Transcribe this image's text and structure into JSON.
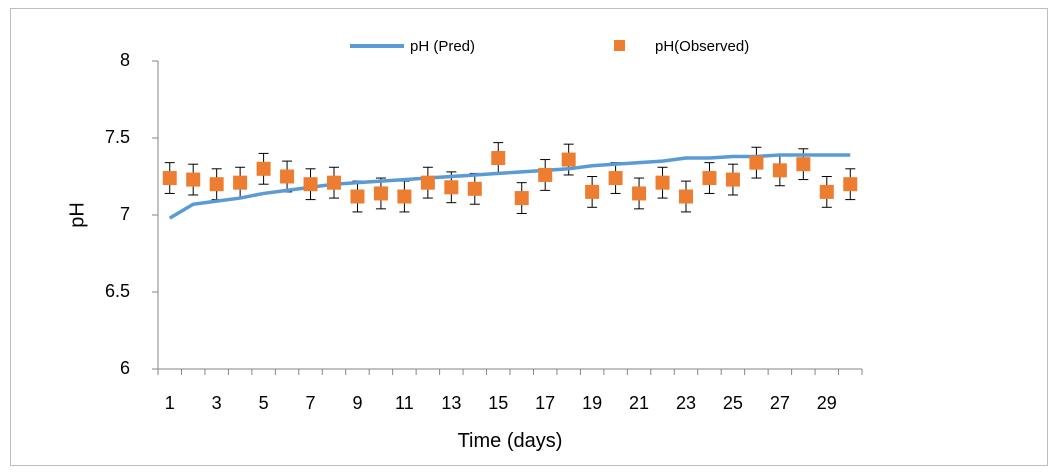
{
  "chart_data": {
    "type": "line",
    "xlabel": "Time (days)",
    "ylabel": "pH",
    "ylim": [
      6,
      8
    ],
    "xlim": [
      0.5,
      30.5
    ],
    "yticks": [
      6,
      6.5,
      7,
      7.5,
      8
    ],
    "xticks": [
      1,
      3,
      5,
      7,
      9,
      11,
      13,
      15,
      17,
      19,
      21,
      23,
      25,
      27,
      29
    ],
    "grid": false,
    "legend_position": "top",
    "series": [
      {
        "name": "pH (Pred)",
        "kind": "line",
        "color": "#5b9bd5",
        "x": [
          1,
          2,
          3,
          4,
          5,
          6,
          7,
          8,
          9,
          10,
          11,
          12,
          13,
          14,
          15,
          16,
          17,
          18,
          19,
          20,
          21,
          22,
          23,
          24,
          25,
          26,
          27,
          28,
          29,
          30
        ],
        "values": [
          6.98,
          7.07,
          7.09,
          7.11,
          7.14,
          7.16,
          7.18,
          7.2,
          7.21,
          7.22,
          7.23,
          7.24,
          7.25,
          7.26,
          7.27,
          7.28,
          7.29,
          7.3,
          7.32,
          7.33,
          7.34,
          7.35,
          7.37,
          7.37,
          7.38,
          7.38,
          7.39,
          7.39,
          7.39,
          7.39
        ]
      },
      {
        "name": "pH(Observed)",
        "kind": "scatter",
        "color": "#ed7d31",
        "x": [
          1,
          2,
          3,
          4,
          5,
          6,
          7,
          8,
          9,
          10,
          11,
          12,
          13,
          14,
          15,
          16,
          17,
          18,
          19,
          20,
          21,
          22,
          23,
          24,
          25,
          26,
          27,
          28,
          29,
          30
        ],
        "values": [
          7.24,
          7.23,
          7.2,
          7.21,
          7.3,
          7.25,
          7.2,
          7.21,
          7.12,
          7.14,
          7.12,
          7.21,
          7.18,
          7.17,
          7.37,
          7.11,
          7.26,
          7.36,
          7.15,
          7.24,
          7.14,
          7.21,
          7.12,
          7.24,
          7.23,
          7.34,
          7.29,
          7.33,
          7.15,
          7.2
        ],
        "error": 0.1
      }
    ]
  }
}
